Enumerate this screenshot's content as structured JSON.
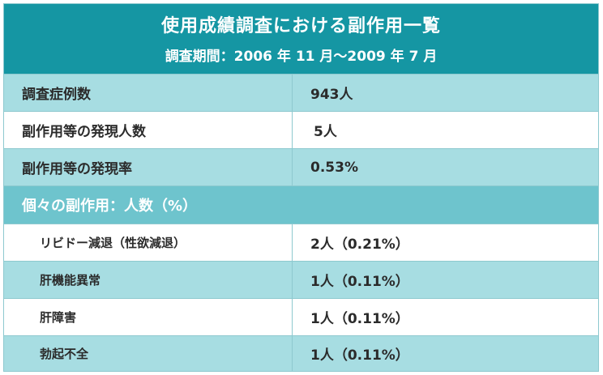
{
  "header": {
    "title": "使用成績調査における副作用一覧",
    "subtitle": "調査期間：2006 年 11 月～2009 年 7 月"
  },
  "summary_rows": [
    {
      "label": "調査症例数",
      "value": "943人"
    },
    {
      "label": "副作用等の発現人数",
      "value": "5人"
    },
    {
      "label": "副作用等の発現率",
      "value": "0.53%"
    }
  ],
  "section": {
    "label": "個々の副作用：人数（%）"
  },
  "detail_rows": [
    {
      "label": "リビドー減退（性欲減退）",
      "value": "2人（0.21%）"
    },
    {
      "label": "肝機能異常",
      "value": "1人（0.11%）"
    },
    {
      "label": "肝障害",
      "value": "1人（0.11%）"
    },
    {
      "label": "勃起不全",
      "value": "1人（0.11%）"
    }
  ]
}
